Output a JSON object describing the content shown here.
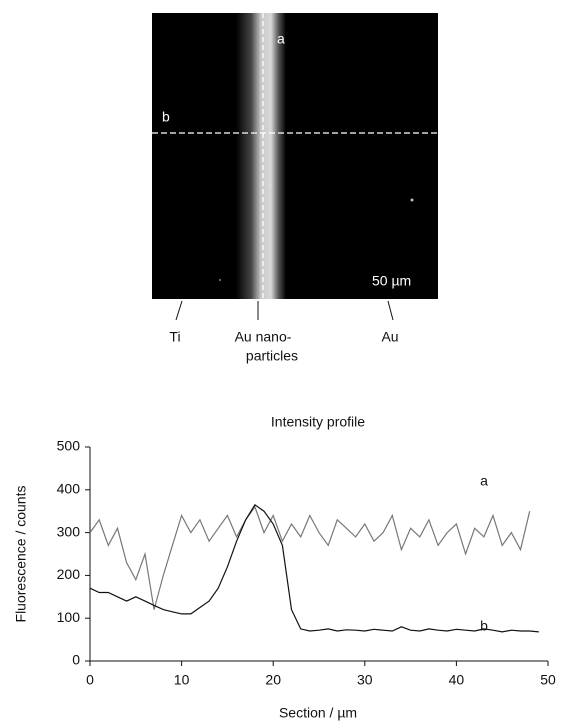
{
  "image": {
    "line_a": "a",
    "line_b": "b",
    "scale_bar": "50 µm",
    "regions": [
      [
        "Ti"
      ],
      [
        "Au nano-",
        "particles"
      ],
      [
        "Au"
      ]
    ]
  },
  "chart_data": {
    "type": "line",
    "title": "Intensity profile",
    "xlabel": "Section / µm",
    "ylabel": "Fluorescence / counts",
    "x": [
      0,
      1,
      2,
      3,
      4,
      5,
      6,
      7,
      8,
      9,
      10,
      11,
      12,
      13,
      14,
      15,
      16,
      17,
      18,
      19,
      20,
      21,
      22,
      23,
      24,
      25,
      26,
      27,
      28,
      29,
      30,
      31,
      32,
      33,
      34,
      35,
      36,
      37,
      38,
      39,
      40,
      41,
      42,
      43,
      44,
      45,
      46,
      47,
      48,
      49
    ],
    "series": [
      {
        "name": "a",
        "color": "#777777",
        "values": [
          300,
          330,
          270,
          310,
          230,
          190,
          250,
          120,
          200,
          270,
          340,
          300,
          330,
          280,
          310,
          340,
          290,
          330,
          360,
          300,
          340,
          280,
          320,
          290,
          340,
          300,
          270,
          330,
          310,
          290,
          320,
          280,
          300,
          340,
          260,
          310,
          290,
          330,
          270,
          300,
          320,
          250,
          310,
          290,
          340,
          270,
          300,
          260,
          350,
          null
        ]
      },
      {
        "name": "b",
        "color": "#111111",
        "values": [
          170,
          160,
          160,
          150,
          140,
          150,
          140,
          130,
          120,
          115,
          110,
          110,
          125,
          140,
          170,
          220,
          280,
          330,
          365,
          350,
          320,
          270,
          120,
          75,
          70,
          72,
          75,
          70,
          73,
          72,
          70,
          74,
          72,
          70,
          80,
          72,
          70,
          75,
          72,
          70,
          74,
          72,
          70,
          75,
          72,
          68,
          72,
          70,
          70,
          68
        ]
      }
    ],
    "xlim": [
      0,
      50
    ],
    "xticks": [
      0,
      10,
      20,
      30,
      40,
      50
    ],
    "ylim": [
      0,
      500
    ],
    "yticks": [
      0,
      100,
      200,
      300,
      400,
      500
    ]
  }
}
